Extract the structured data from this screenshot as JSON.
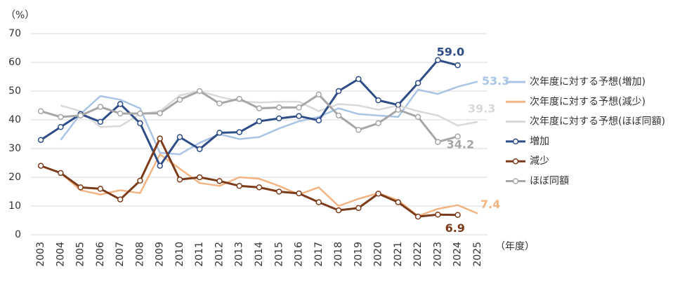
{
  "chart_data": {
    "type": "line",
    "y_label": "（%）",
    "x_label": "（年度）",
    "categories": [
      "2003",
      "2004",
      "2005",
      "2006",
      "2007",
      "2008",
      "2009",
      "2010",
      "2011",
      "2012",
      "2013",
      "2014",
      "2015",
      "2016",
      "2017",
      "2018",
      "2019",
      "2020",
      "2021",
      "2022",
      "2023",
      "2024",
      "2025"
    ],
    "ylim": [
      0,
      70
    ],
    "yticks": [
      0,
      10,
      20,
      30,
      40,
      50,
      60,
      70
    ],
    "grid": true,
    "legend": "right",
    "series": [
      {
        "name": "次年度に対する予想(増加)",
        "color": "#a9c4e4",
        "markers": false,
        "values": [
          null,
          33,
          42,
          48.3,
          47,
          44,
          28.5,
          28,
          32,
          35,
          33.3,
          34,
          37,
          39.5,
          41,
          44,
          42,
          41.5,
          41,
          50.5,
          49,
          51.5,
          53.3
        ],
        "value_labels": [
          null,
          null,
          null,
          null,
          null,
          null,
          null,
          null,
          null,
          null,
          null,
          null,
          null,
          null,
          null,
          null,
          null,
          null,
          null,
          null,
          null,
          null,
          "53.3"
        ]
      },
      {
        "name": "次年度に対する予想(減少)",
        "color": "#f2b482",
        "markers": false,
        "values": [
          null,
          21.5,
          15.5,
          14,
          15.5,
          14.5,
          28,
          23,
          18,
          17,
          20,
          19.5,
          17,
          14,
          16.5,
          10,
          12.5,
          14.5,
          12,
          6.5,
          9,
          10.3,
          7.4
        ],
        "value_labels": [
          null,
          null,
          null,
          null,
          null,
          null,
          null,
          null,
          null,
          null,
          null,
          null,
          null,
          null,
          null,
          null,
          null,
          null,
          null,
          null,
          null,
          null,
          "7.4"
        ]
      },
      {
        "name": "次年度に対する予想(ほぼ同額)",
        "color": "#d9d9d9",
        "markers": false,
        "values": [
          null,
          45,
          43,
          37.5,
          37.8,
          42,
          43,
          48.5,
          50,
          48,
          46.5,
          46,
          46.3,
          46.3,
          43,
          45.5,
          45,
          43.5,
          45,
          43,
          41.5,
          38,
          39.3
        ],
        "value_labels": [
          null,
          null,
          null,
          null,
          null,
          null,
          null,
          null,
          null,
          null,
          null,
          null,
          null,
          null,
          null,
          null,
          null,
          null,
          null,
          null,
          null,
          null,
          "39.3"
        ]
      },
      {
        "name": "増加",
        "color": "#2e4d87",
        "markers": true,
        "values": [
          33,
          37.5,
          42,
          39.3,
          45.5,
          38.8,
          24,
          34,
          29.8,
          35.5,
          35.7,
          39.5,
          40.5,
          41.3,
          39.8,
          50,
          54.2,
          46.8,
          45.2,
          52.8,
          60.8,
          59.0,
          null
        ],
        "value_labels": [
          null,
          null,
          null,
          null,
          null,
          null,
          null,
          null,
          null,
          null,
          null,
          null,
          null,
          null,
          null,
          null,
          null,
          null,
          null,
          null,
          null,
          "59.0",
          null
        ]
      },
      {
        "name": "減少",
        "color": "#7b3b1a",
        "markers": true,
        "values": [
          24,
          21.5,
          16.5,
          16,
          12.3,
          18.8,
          33.5,
          19.2,
          20,
          18.7,
          17,
          16.5,
          15,
          14.4,
          11.3,
          8.5,
          9.3,
          14.3,
          11.3,
          6.3,
          7,
          6.9,
          null
        ],
        "value_labels": [
          null,
          null,
          null,
          null,
          null,
          null,
          null,
          null,
          null,
          null,
          null,
          null,
          null,
          null,
          null,
          null,
          null,
          null,
          null,
          null,
          null,
          "6.9",
          null
        ]
      },
      {
        "name": "ほぼ同額",
        "color": "#a6a6a6",
        "markers": true,
        "values": [
          43,
          41,
          41.5,
          44.5,
          42.2,
          42.2,
          42.3,
          47,
          50,
          45.7,
          47.3,
          44,
          44.3,
          44.3,
          48.8,
          41.5,
          36.5,
          38.8,
          43.5,
          41,
          32.3,
          34.2,
          null
        ],
        "value_labels": [
          null,
          null,
          null,
          null,
          null,
          null,
          null,
          null,
          null,
          null,
          null,
          null,
          null,
          null,
          null,
          null,
          null,
          null,
          null,
          null,
          null,
          "34.2",
          null
        ]
      }
    ]
  }
}
